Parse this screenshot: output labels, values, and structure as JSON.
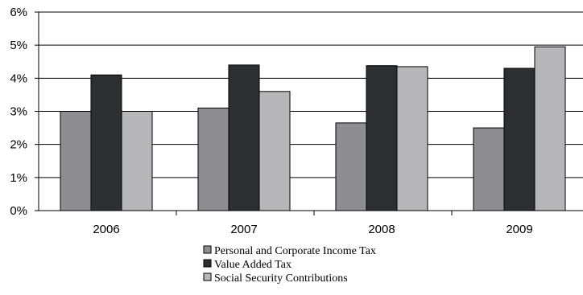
{
  "chart_data": {
    "type": "bar",
    "categories": [
      "2006",
      "2007",
      "2008",
      "2009"
    ],
    "series": [
      {
        "name": "Personal and Corporate Income Tax",
        "color": "#8e8e92",
        "values": [
          3.0,
          3.1,
          2.65,
          2.5
        ]
      },
      {
        "name": "Value Added Tax",
        "color": "#2d2f33",
        "values": [
          4.1,
          4.4,
          4.38,
          4.3
        ]
      },
      {
        "name": "Social Security Contributions",
        "color": "#b7b7ba",
        "values": [
          3.0,
          3.6,
          4.35,
          4.95
        ]
      }
    ],
    "y_ticks": [
      "0%",
      "1%",
      "2%",
      "3%",
      "4%",
      "5%",
      "6%"
    ],
    "ylim": [
      0,
      6
    ],
    "grid": true,
    "legend_position": "bottom-center"
  }
}
